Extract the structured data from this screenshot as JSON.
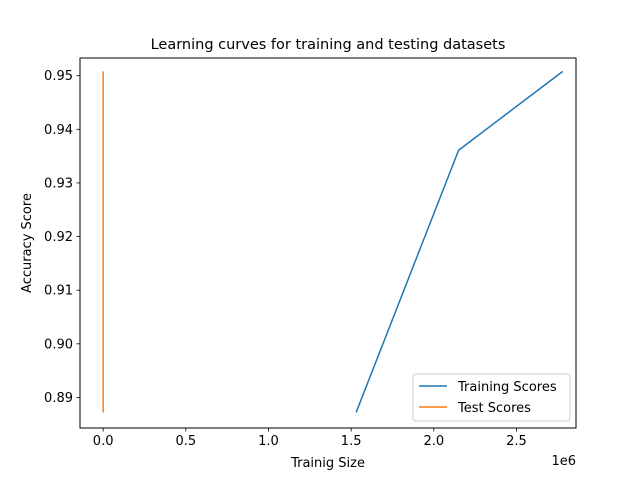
{
  "colors": {
    "background": "#ffffff",
    "axes": "#000000",
    "training": "#1f77b4",
    "test": "#ff7f0e"
  },
  "chart_data": {
    "type": "line",
    "title": "Learning curves for training and testing datasets",
    "xlabel": "Trainig Size",
    "ylabel": "Accuracy Score",
    "x_offset_label": "1e6",
    "xlim": [
      -0.14,
      2.86
    ],
    "ylim": [
      0.8843,
      0.9533
    ],
    "x_ticks": [
      0,
      0.5,
      1.0,
      1.5,
      2.0,
      2.5
    ],
    "x_tick_labels": [
      "0.0",
      "0.5",
      "1.0",
      "1.5",
      "2.0",
      "2.5"
    ],
    "y_ticks": [
      0.89,
      0.9,
      0.91,
      0.92,
      0.93,
      0.94,
      0.95
    ],
    "y_tick_labels": [
      "0.89",
      "0.90",
      "0.91",
      "0.92",
      "0.93",
      "0.94",
      "0.95"
    ],
    "grid": false,
    "legend_position": "lower-right",
    "series": [
      {
        "name": "Training Scores",
        "color": "#1f77b4",
        "x": [
          1.53,
          2.15,
          2.78
        ],
        "y": [
          0.8872,
          0.9361,
          0.9508
        ]
      },
      {
        "name": "Test Scores",
        "color": "#ff7f0e",
        "x": [
          0.0,
          0.0,
          0.0
        ],
        "y": [
          0.8872,
          0.9361,
          0.9508
        ]
      }
    ]
  }
}
